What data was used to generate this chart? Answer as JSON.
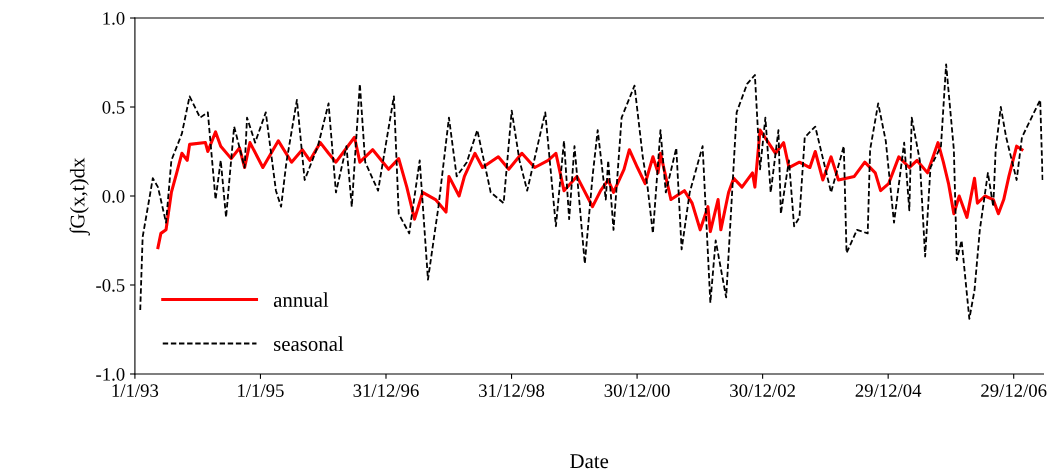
{
  "chart_data": {
    "type": "line",
    "xlabel": "Date",
    "ylabel": "∫G(x,t)dx",
    "xlim": [
      "1993-01-01",
      "2007-06-20"
    ],
    "ylim": [
      -1,
      1
    ],
    "xticks": [
      {
        "value": "1993-01-01",
        "label": "1/1/93"
      },
      {
        "value": "1995-01-01",
        "label": "1/1/95"
      },
      {
        "value": "1996-12-31",
        "label": "31/12/96"
      },
      {
        "value": "1998-12-31",
        "label": "31/12/98"
      },
      {
        "value": "2000-12-30",
        "label": "30/12/00"
      },
      {
        "value": "2002-12-30",
        "label": "30/12/02"
      },
      {
        "value": "2004-12-29",
        "label": "29/12/04"
      },
      {
        "value": "2006-12-29",
        "label": "29/12/06"
      }
    ],
    "yticks": [
      {
        "value": -1,
        "label": "-1.0"
      },
      {
        "value": -0.5,
        "label": "-0.5"
      },
      {
        "value": 0,
        "label": "0.0"
      },
      {
        "value": 0.5,
        "label": "0.5"
      },
      {
        "value": 1,
        "label": "1.0"
      }
    ],
    "grid": false,
    "legend": "bottom left",
    "series": [
      {
        "name": "annual",
        "color": "#ff0000",
        "line_style": "solid",
        "x": [
          "1993-05-15",
          "1993-06-01",
          "1993-07-01",
          "1993-08-01",
          "1993-09-01",
          "1993-10-01",
          "1993-11-01",
          "1993-11-15",
          "1994-02-15",
          "1994-03-01",
          "1994-04-15",
          "1994-05-15",
          "1994-07-15",
          "1994-09-01",
          "1994-10-01",
          "1994-11-01",
          "1995-01-15",
          "1995-04-15",
          "1995-07-01",
          "1995-09-01",
          "1995-10-15",
          "1995-12-15",
          "1996-02-01",
          "1996-03-15",
          "1996-07-01",
          "1996-08-01",
          "1996-10-15",
          "1997-01-15",
          "1997-03-15",
          "1997-05-01",
          "1997-06-15",
          "1997-08-01",
          "1997-10-15",
          "1997-12-15",
          "1998-01-01",
          "1998-03-01",
          "1998-04-01",
          "1998-06-01",
          "1998-07-15",
          "1998-10-15",
          "1998-12-15",
          "1999-03-01",
          "1999-05-15",
          "1999-08-01",
          "1999-09-15",
          "1999-11-01",
          "2000-01-15",
          "2000-04-15",
          "2000-06-01",
          "2000-07-15",
          "2000-08-15",
          "2000-10-15",
          "2000-11-15",
          "2001-01-01",
          "2001-02-15",
          "2001-04-01",
          "2001-05-01",
          "2001-05-15",
          "2001-07-15",
          "2001-10-01",
          "2001-11-15",
          "2002-01-01",
          "2002-02-15",
          "2002-03-01",
          "2002-04-15",
          "2002-05-01",
          "2002-06-15",
          "2002-07-15",
          "2002-09-01",
          "2002-11-01",
          "2002-11-15",
          "2002-12-15",
          "2003-02-15",
          "2003-03-15",
          "2003-05-01",
          "2003-06-01",
          "2003-08-01",
          "2003-10-01",
          "2003-11-01",
          "2003-12-15",
          "2004-02-01",
          "2004-03-15",
          "2004-06-15",
          "2004-08-15",
          "2004-10-15",
          "2004-11-15",
          "2005-01-01",
          "2005-03-01",
          "2005-05-01",
          "2005-06-15",
          "2005-08-15",
          "2005-10-15",
          "2005-11-15",
          "2005-12-15",
          "2006-01-15",
          "2006-02-15",
          "2006-04-01",
          "2006-05-15",
          "2006-06-01",
          "2006-07-15",
          "2006-09-01",
          "2006-10-01",
          "2006-11-01",
          "2006-12-01",
          "2007-01-15",
          "2007-02-15"
        ],
        "values": [
          -0.29,
          -0.21,
          -0.19,
          0.02,
          0.13,
          0.24,
          0.2,
          0.29,
          0.3,
          0.25,
          0.36,
          0.28,
          0.21,
          0.27,
          0.16,
          0.3,
          0.16,
          0.31,
          0.19,
          0.26,
          0.2,
          0.3,
          0.24,
          0.19,
          0.33,
          0.19,
          0.26,
          0.15,
          0.21,
          0.05,
          -0.13,
          0.02,
          -0.02,
          -0.09,
          0.11,
          0,
          0.11,
          0.24,
          0.16,
          0.22,
          0.15,
          0.24,
          0.16,
          0.2,
          0.24,
          0.03,
          0.11,
          -0.06,
          0.03,
          0.09,
          0.02,
          0.15,
          0.26,
          0.16,
          0.07,
          0.22,
          0.13,
          0.24,
          -0.02,
          0.03,
          -0.04,
          -0.19,
          -0.06,
          -0.2,
          -0.02,
          -0.19,
          0.02,
          0.1,
          0.05,
          0.13,
          0.05,
          0.37,
          0.28,
          0.24,
          0.3,
          0.16,
          0.19,
          0.16,
          0.25,
          0.09,
          0.22,
          0.09,
          0.11,
          0.19,
          0.13,
          0.03,
          0.07,
          0.22,
          0.16,
          0.2,
          0.13,
          0.3,
          0.19,
          0.07,
          -0.1,
          0,
          -0.12,
          0.1,
          -0.04,
          0,
          -0.02,
          -0.1,
          -0.02,
          0.11,
          0.28,
          0.26
        ]
      },
      {
        "name": "seasonal",
        "color": "#000000",
        "line_style": "dashed",
        "x": [
          "1993-02-01",
          "1993-02-15",
          "1993-04-01",
          "1993-04-15",
          "1993-05-15",
          "1993-07-01",
          "1993-08-01",
          "1993-10-01",
          "1993-11-15",
          "1994-01-15",
          "1994-03-01",
          "1994-04-15",
          "1994-05-15",
          "1994-06-15",
          "1994-08-01",
          "1994-10-01",
          "1994-10-15",
          "1994-12-01",
          "1995-02-01",
          "1995-04-01",
          "1995-05-01",
          "1995-06-01",
          "1995-08-01",
          "1995-09-15",
          "1995-12-01",
          "1996-02-01",
          "1996-03-15",
          "1996-05-15",
          "1996-06-15",
          "1996-08-01",
          "1996-09-01",
          "1996-11-15",
          "1997-02-15",
          "1997-03-15",
          "1997-05-15",
          "1997-07-15",
          "1997-09-01",
          "1997-11-01",
          "1998-01-01",
          "1998-02-15",
          "1998-04-15",
          "1998-06-15",
          "1998-09-01",
          "1998-11-15",
          "1999-01-01",
          "1999-02-15",
          "1999-04-01",
          "1999-07-15",
          "1999-09-15",
          "1999-11-01",
          "1999-12-01",
          "2000-01-01",
          "2000-03-01",
          "2000-04-15",
          "2000-05-15",
          "2000-07-01",
          "2000-07-15",
          "2000-08-15",
          "2000-10-01",
          "2000-12-15",
          "2001-02-01",
          "2001-03-01",
          "2001-04-01",
          "2001-05-15",
          "2001-06-15",
          "2001-08-15",
          "2001-09-15",
          "2001-11-01",
          "2002-01-15",
          "2002-03-01",
          "2002-04-01",
          "2002-06-01",
          "2002-08-01",
          "2002-10-01",
          "2002-11-15",
          "2002-12-15",
          "2003-01-15",
          "2003-02-15",
          "2003-04-01",
          "2003-04-15",
          "2003-06-01",
          "2003-07-01",
          "2003-08-01",
          "2003-09-01",
          "2003-11-01",
          "2004-02-01",
          "2004-04-15",
          "2004-05-01",
          "2004-07-01",
          "2004-09-01",
          "2004-09-15",
          "2004-11-01",
          "2004-12-15",
          "2005-02-01",
          "2005-04-01",
          "2005-05-01",
          "2005-05-15",
          "2005-07-01",
          "2005-08-01",
          "2005-09-01",
          "2005-11-01",
          "2005-12-01",
          "2006-01-15",
          "2006-02-01",
          "2006-03-01",
          "2006-04-15",
          "2006-05-15",
          "2006-06-15",
          "2006-08-01",
          "2006-09-01",
          "2006-09-15",
          "2006-10-15",
          "2006-11-15",
          "2007-01-15",
          "2007-02-15",
          "2007-06-01",
          "2007-06-15"
        ],
        "values": [
          -0.64,
          -0.23,
          0.02,
          0.1,
          0.05,
          -0.15,
          0.2,
          0.35,
          0.56,
          0.44,
          0.47,
          -0.02,
          0.2,
          -0.12,
          0.39,
          0.16,
          0.44,
          0.3,
          0.47,
          0.03,
          -0.06,
          0.19,
          0.54,
          0.09,
          0.28,
          0.52,
          0.02,
          0.28,
          -0.06,
          0.63,
          0.19,
          0.03,
          0.56,
          -0.1,
          -0.21,
          0.2,
          -0.47,
          -0.06,
          0.44,
          0.11,
          0.19,
          0.37,
          0.02,
          -0.04,
          0.48,
          0.2,
          0.03,
          0.47,
          -0.17,
          0.31,
          -0.13,
          0.28,
          -0.38,
          0.11,
          0.37,
          -0.02,
          0.2,
          -0.19,
          0.44,
          0.62,
          0.22,
          0.05,
          -0.21,
          0.37,
          0.02,
          0.27,
          -0.3,
          0.02,
          0.28,
          -0.6,
          -0.25,
          -0.57,
          0.47,
          0.63,
          0.68,
          0.15,
          0.44,
          0.02,
          0.37,
          -0.1,
          0.2,
          -0.17,
          -0.12,
          0.33,
          0.39,
          0.02,
          0.28,
          -0.32,
          -0.19,
          -0.21,
          0.26,
          0.52,
          0.31,
          -0.15,
          0.3,
          -0.08,
          0.44,
          0.2,
          -0.34,
          0.16,
          0.28,
          0.74,
          0.26,
          -0.36,
          -0.25,
          -0.69,
          -0.53,
          -0.19,
          0.13,
          -0.06,
          0.26,
          0.5,
          0.33,
          0.09,
          0.33,
          0.54,
          0.09
        ]
      }
    ]
  }
}
